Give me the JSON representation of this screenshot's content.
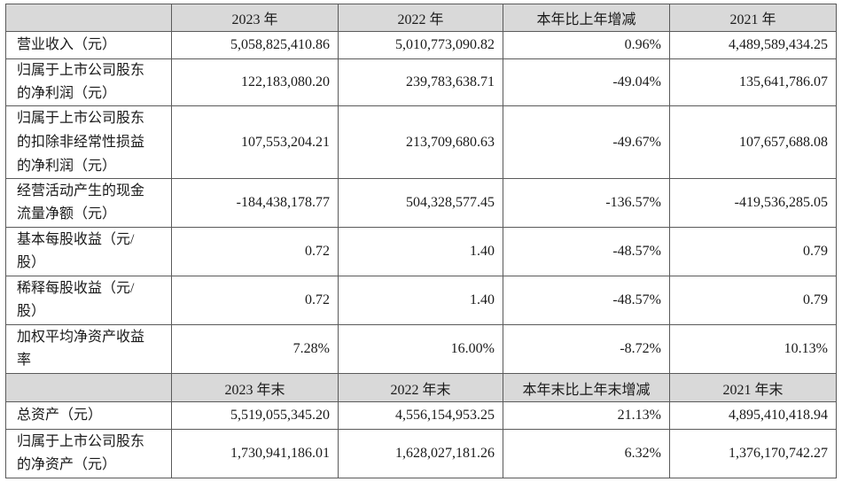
{
  "colors": {
    "header_bg": "#d9d9d9",
    "border": "#5a5a5a",
    "text": "#1a1a1a"
  },
  "header_annual": [
    "2023 年",
    "2022 年",
    "本年比上年增减",
    "2021 年"
  ],
  "rows_annual": [
    {
      "label_lines": [
        "营业收入（元）"
      ],
      "values": [
        "5,058,825,410.86",
        "5,010,773,090.82",
        "0.96%",
        "4,489,589,434.25"
      ]
    },
    {
      "label_lines": [
        "归属于上市公司股东",
        "的净利润（元）"
      ],
      "values": [
        "122,183,080.20",
        "239,783,638.71",
        "-49.04%",
        "135,641,786.07"
      ]
    },
    {
      "label_lines": [
        "归属于上市公司股东",
        "的扣除非经常性损益",
        "的净利润（元）"
      ],
      "values": [
        "107,553,204.21",
        "213,709,680.63",
        "-49.67%",
        "107,657,688.08"
      ]
    },
    {
      "label_lines": [
        "经营活动产生的现金",
        "流量净额（元）"
      ],
      "values": [
        "-184,438,178.77",
        "504,328,577.45",
        "-136.57%",
        "-419,536,285.05"
      ]
    },
    {
      "label_lines": [
        "基本每股收益（元/",
        "股）"
      ],
      "values": [
        "0.72",
        "1.40",
        "-48.57%",
        "0.79"
      ]
    },
    {
      "label_lines": [
        "稀释每股收益（元/",
        "股）"
      ],
      "values": [
        "0.72",
        "1.40",
        "-48.57%",
        "0.79"
      ]
    },
    {
      "label_lines": [
        "加权平均净资产收益",
        "率"
      ],
      "values": [
        "7.28%",
        "16.00%",
        "-8.72%",
        "10.13%"
      ]
    }
  ],
  "header_yearend": [
    "2023 年末",
    "2022 年末",
    "本年末比上年末增减",
    "2021 年末"
  ],
  "rows_yearend": [
    {
      "label_lines": [
        "总资产（元）"
      ],
      "values": [
        "5,519,055,345.20",
        "4,556,154,953.25",
        "21.13%",
        "4,895,410,418.94"
      ]
    },
    {
      "label_lines": [
        "归属于上市公司股东",
        "的净资产（元）"
      ],
      "values": [
        "1,730,941,186.01",
        "1,628,027,181.26",
        "6.32%",
        "1,376,170,742.27"
      ]
    }
  ]
}
